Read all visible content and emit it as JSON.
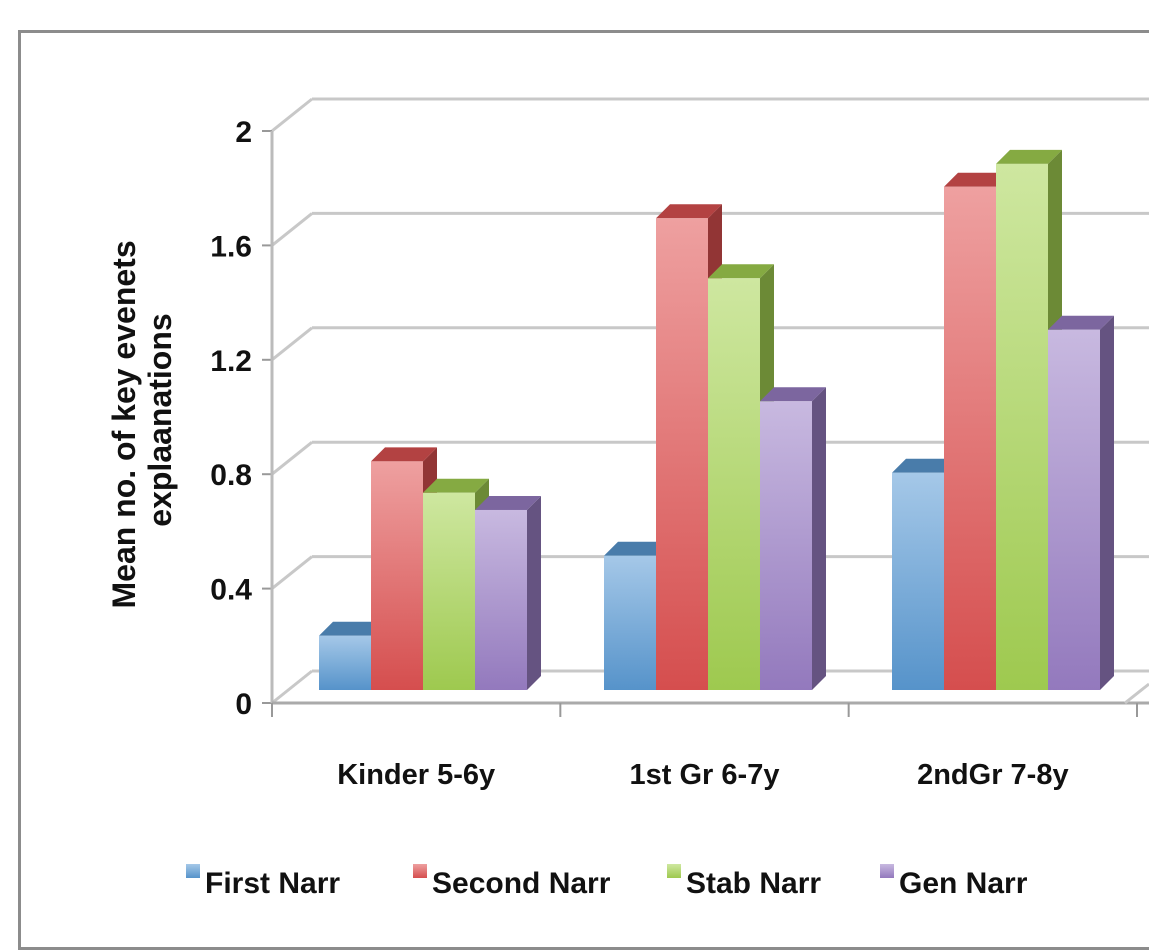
{
  "chart_data": {
    "type": "bar",
    "style": "3d-clustered-column",
    "categories": [
      "Kinder 5-6y",
      "1st Gr 6-7y",
      "2ndGr 7-8y"
    ],
    "series": [
      {
        "name": "First Narr",
        "values": [
          0.2,
          0.48,
          0.77
        ],
        "color": "#5b9bd5"
      },
      {
        "name": "Second Narr",
        "values": [
          0.81,
          1.66,
          1.77
        ],
        "color": "#e05252"
      },
      {
        "name": "Stab Narr",
        "values": [
          0.7,
          1.45,
          1.85
        ],
        "color": "#a6d453"
      },
      {
        "name": "Gen Narr",
        "values": [
          0.64,
          1.02,
          1.27
        ],
        "color": "#9b7fc7"
      }
    ],
    "title": "",
    "xlabel": "",
    "ylabel": "Mean no. of key evenets explaanations",
    "ylabel_lines": [
      "Mean no. of key evenets",
      "explaanations"
    ],
    "ylim": [
      0,
      2
    ],
    "yticks": [
      "0",
      "0.4",
      "0.8",
      "1.2",
      "1.6",
      "2"
    ],
    "grid": true,
    "legend": "bottom"
  }
}
